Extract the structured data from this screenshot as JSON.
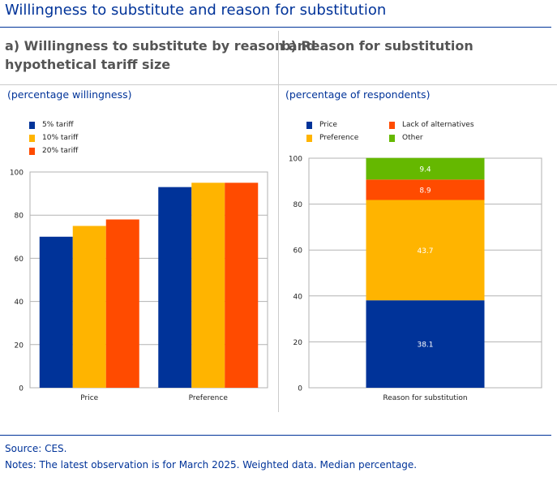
{
  "title": "Willingness to substitute and reason for substitution",
  "panels": {
    "a": {
      "title_line1": "a) Willingness to substitute by reason and",
      "title_line2": "hypothetical tariff size",
      "unit": "(percentage willingness)"
    },
    "b": {
      "title": "b) Reason for substitution",
      "unit": "(percentage of respondents)"
    }
  },
  "footer": {
    "source": "Source: CES.",
    "notes": "Notes: The latest observation is for March 2025. Weighted data. Median percentage."
  },
  "colors": {
    "dark_blue": "#003399",
    "yellow": "#FFB400",
    "orange": "#FF4B00",
    "green": "#65B800"
  },
  "chart_data": [
    {
      "type": "bar",
      "categories": [
        "Price",
        "Preference"
      ],
      "series": [
        {
          "name": "5% tariff",
          "values": [
            70,
            93
          ],
          "color": "#003399"
        },
        {
          "name": "10% tariff",
          "values": [
            75,
            95
          ],
          "color": "#FFB400"
        },
        {
          "name": "20% tariff",
          "values": [
            78,
            95
          ],
          "color": "#FF4B00"
        }
      ],
      "ylim": [
        0,
        100
      ],
      "yticks": [
        0,
        20,
        40,
        60,
        80,
        100
      ],
      "xlabel": "",
      "ylabel": ""
    },
    {
      "type": "bar",
      "stacked": true,
      "categories": [
        "Reason for substitution"
      ],
      "series": [
        {
          "name": "Price",
          "values": [
            38.1
          ],
          "color": "#003399",
          "label": "38.1"
        },
        {
          "name": "Preference",
          "values": [
            43.7
          ],
          "color": "#FFB400",
          "label": "43.7"
        },
        {
          "name": "Lack of alternatives",
          "values": [
            8.9
          ],
          "color": "#FF4B00",
          "label": "8.9"
        },
        {
          "name": "Other",
          "values": [
            9.4
          ],
          "color": "#65B800",
          "label": "9.4"
        }
      ],
      "ylim": [
        0,
        100
      ],
      "yticks": [
        0,
        20,
        40,
        60,
        80,
        100
      ],
      "xlabel": "",
      "ylabel": ""
    }
  ]
}
